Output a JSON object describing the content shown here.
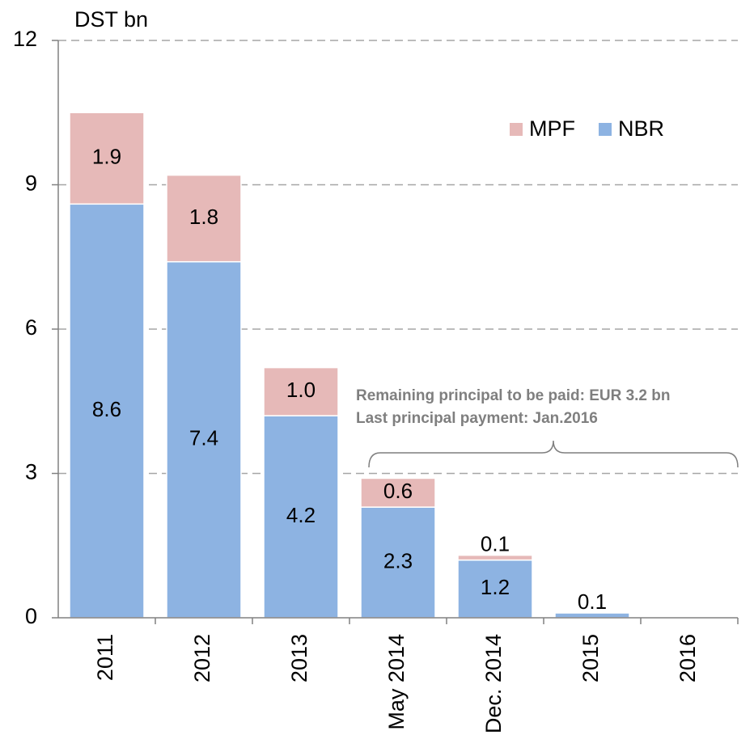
{
  "chart_data": {
    "type": "bar",
    "stacked": true,
    "y_axis_label": "DST bn",
    "categories": [
      "2011",
      "2012",
      "2013",
      "May 2014",
      "Dec. 2014",
      "2015",
      "2016"
    ],
    "series": [
      {
        "name": "NBR",
        "color": "#8db3e2",
        "values": [
          8.6,
          7.4,
          4.2,
          2.3,
          1.2,
          0.1,
          null
        ],
        "value_labels": [
          "8.6",
          "7.4",
          "4.2",
          "2.3",
          "1.2",
          "0.1",
          null
        ]
      },
      {
        "name": "MPF",
        "color": "#e6b9b8",
        "values": [
          1.9,
          1.8,
          1.0,
          0.6,
          0.1,
          null,
          null
        ],
        "value_labels": [
          "1.9",
          "1.8",
          "1.0",
          "0.6",
          "0.1",
          null,
          null
        ]
      }
    ],
    "ylim": [
      0,
      12
    ],
    "yticks": [
      0,
      3,
      6,
      9,
      12
    ],
    "grid": true,
    "legend": "upper right",
    "annotations": [
      "Remaining principal to be paid: EUR 3.2 bn",
      "Last principal payment: Jan.2016"
    ]
  }
}
